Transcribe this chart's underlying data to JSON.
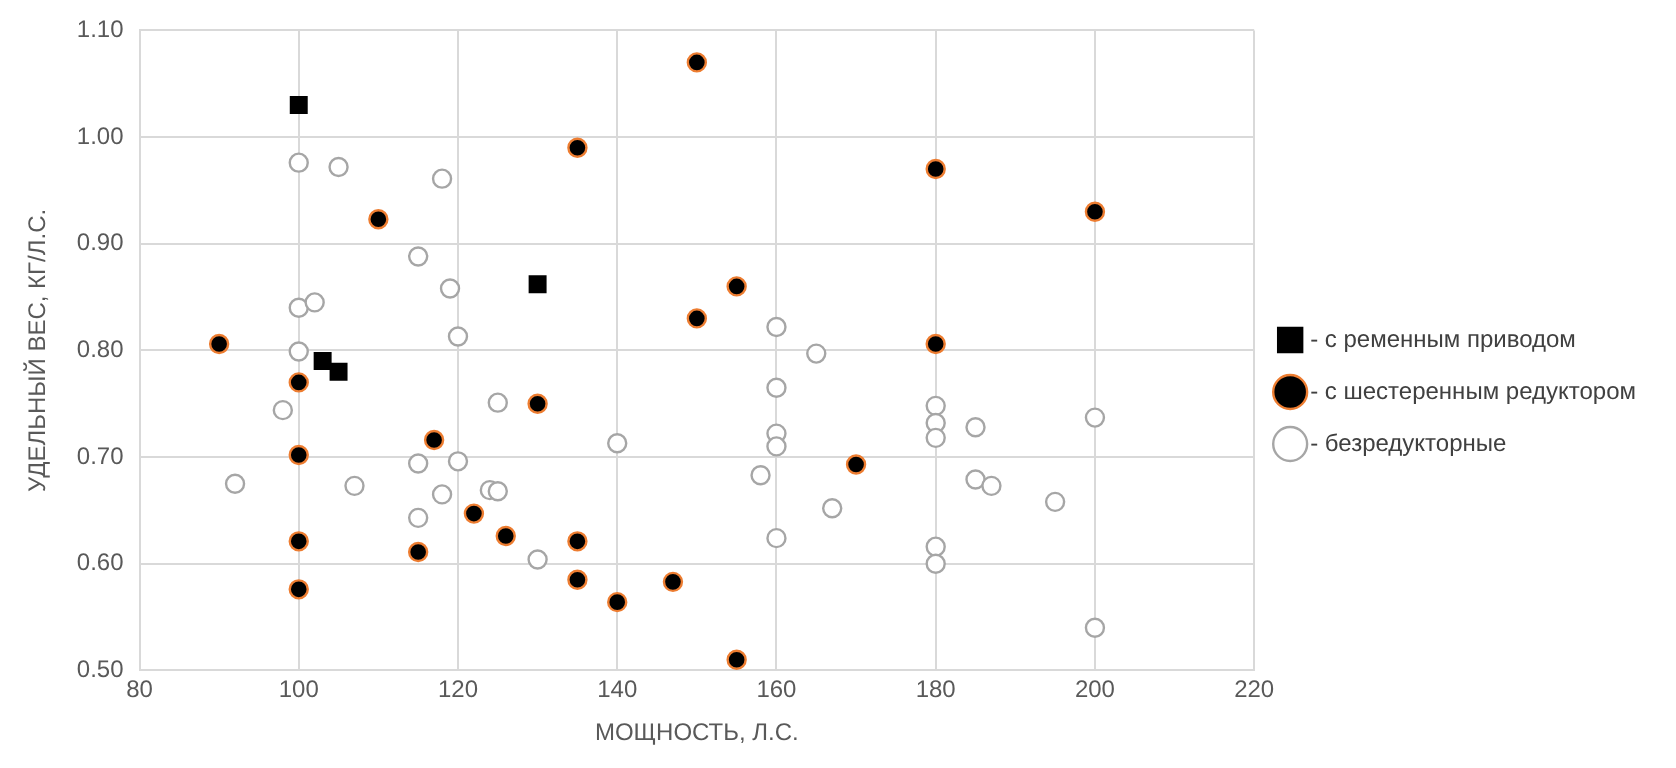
{
  "chart_data": {
    "type": "scatter",
    "xlabel": "МОЩНОСТЬ, Л.С.",
    "ylabel": "УДЕЛЬНЫЙ ВЕС, КГ/Л.С.",
    "xlim": [
      80,
      220
    ],
    "xticks": [
      80,
      100,
      120,
      140,
      160,
      180,
      200,
      220
    ],
    "ylim": [
      0.5,
      1.1
    ],
    "yticks": [
      {
        "value": 0.5,
        "label": "0.50"
      },
      {
        "value": 0.6,
        "label": "0.60"
      },
      {
        "value": 0.7,
        "label": "0.70"
      },
      {
        "value": 0.8,
        "label": "0.80"
      },
      {
        "value": 0.9,
        "label": "0.90"
      },
      {
        "value": 1.0,
        "label": "1.00"
      },
      {
        "value": 1.1,
        "label": "1.10"
      }
    ],
    "grid": true,
    "legend": "right",
    "series": [
      {
        "name": "- с ременным приводом",
        "color": "#000000",
        "marker": "square",
        "x": [
          100,
          103,
          105,
          130
        ],
        "values": [
          1.03,
          0.79,
          0.78,
          0.862
        ]
      },
      {
        "name": "- с шестеренным редуктором",
        "color": "#000000",
        "marker": "circle",
        "x": [
          90,
          100,
          100,
          100,
          100,
          110,
          115,
          117,
          122,
          126,
          130,
          135,
          135,
          135,
          140,
          147,
          150,
          150,
          155,
          155,
          170,
          180,
          180,
          200
        ],
        "values": [
          0.806,
          0.77,
          0.702,
          0.621,
          0.576,
          0.923,
          0.611,
          0.716,
          0.647,
          0.626,
          0.75,
          0.99,
          0.621,
          0.585,
          0.564,
          0.583,
          1.07,
          0.83,
          0.86,
          0.51,
          0.693,
          0.97,
          0.806,
          0.93
        ]
      },
      {
        "name": "- безредукторные",
        "color": "#a6a6a6",
        "marker": "circle",
        "x": [
          92,
          98,
          100,
          100,
          100,
          102,
          105,
          107,
          115,
          115,
          115,
          118,
          118,
          119,
          120,
          120,
          124,
          125,
          125,
          130,
          140,
          158,
          160,
          160,
          160,
          160,
          160,
          165,
          167,
          180,
          180,
          180,
          180,
          180,
          185,
          185,
          187,
          195,
          200,
          200
        ],
        "values": [
          0.675,
          0.744,
          0.976,
          0.84,
          0.799,
          0.845,
          0.972,
          0.673,
          0.888,
          0.694,
          0.643,
          0.961,
          0.665,
          0.858,
          0.813,
          0.696,
          0.669,
          0.751,
          0.668,
          0.604,
          0.713,
          0.683,
          0.822,
          0.765,
          0.722,
          0.71,
          0.624,
          0.797,
          0.652,
          0.748,
          0.732,
          0.718,
          0.616,
          0.6,
          0.728,
          0.679,
          0.673,
          0.658,
          0.737,
          0.54
        ]
      }
    ]
  }
}
